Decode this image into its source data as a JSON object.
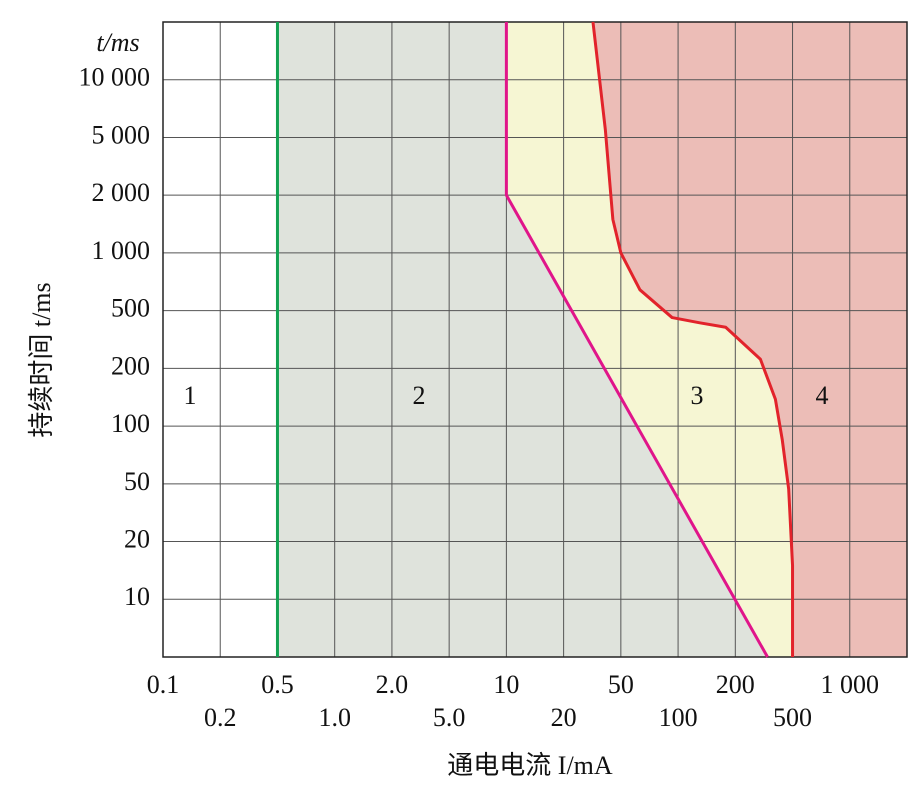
{
  "chart_data": {
    "type": "line",
    "y_unit": "t/ms",
    "x_label": "通电电流 I/mA",
    "y_label": "持续时间 t/ms",
    "xlim": [
      0.1,
      2000
    ],
    "ylim": [
      5,
      20000
    ],
    "xticks": [
      0.1,
      0.2,
      0.5,
      {
        "value": 1,
        "label": "1.0"
      },
      {
        "value": 2,
        "label": "2.0"
      },
      {
        "value": 5,
        "label": "5.0"
      },
      10,
      20,
      50,
      100,
      200,
      500,
      {
        "value": 1000,
        "label": "1 000"
      }
    ],
    "yticks": [
      10,
      20,
      50,
      100,
      200,
      500,
      {
        "value": 1000,
        "label": "1 000"
      },
      {
        "value": 2000,
        "label": "2 000"
      },
      {
        "value": 5000,
        "label": "5 000"
      },
      {
        "value": 10000,
        "label": "10 000"
      }
    ],
    "grid": true,
    "series": [
      {
        "color": "#12a150",
        "fill": "#dfe3dc",
        "x": [
          0.5,
          0.5
        ],
        "y": [
          20000,
          5
        ]
      },
      {
        "color": "#e0158a",
        "fill": "#f6f6d3",
        "x": [
          10,
          10,
          335
        ],
        "y": [
          20000,
          2000,
          5
        ]
      },
      {
        "color": "#e2232b",
        "fill": "#ecbdb7",
        "x": [
          32,
          39,
          44,
          50,
          63,
          93,
          130,
          178,
          299,
          380,
          424,
          470,
          500,
          500
        ],
        "y": [
          20000,
          5500,
          1495,
          1000,
          642,
          448,
          412,
          384,
          231,
          138,
          85,
          46,
          15,
          5
        ]
      }
    ],
    "annotations": [
      "1",
      "2",
      "3",
      "4"
    ]
  }
}
